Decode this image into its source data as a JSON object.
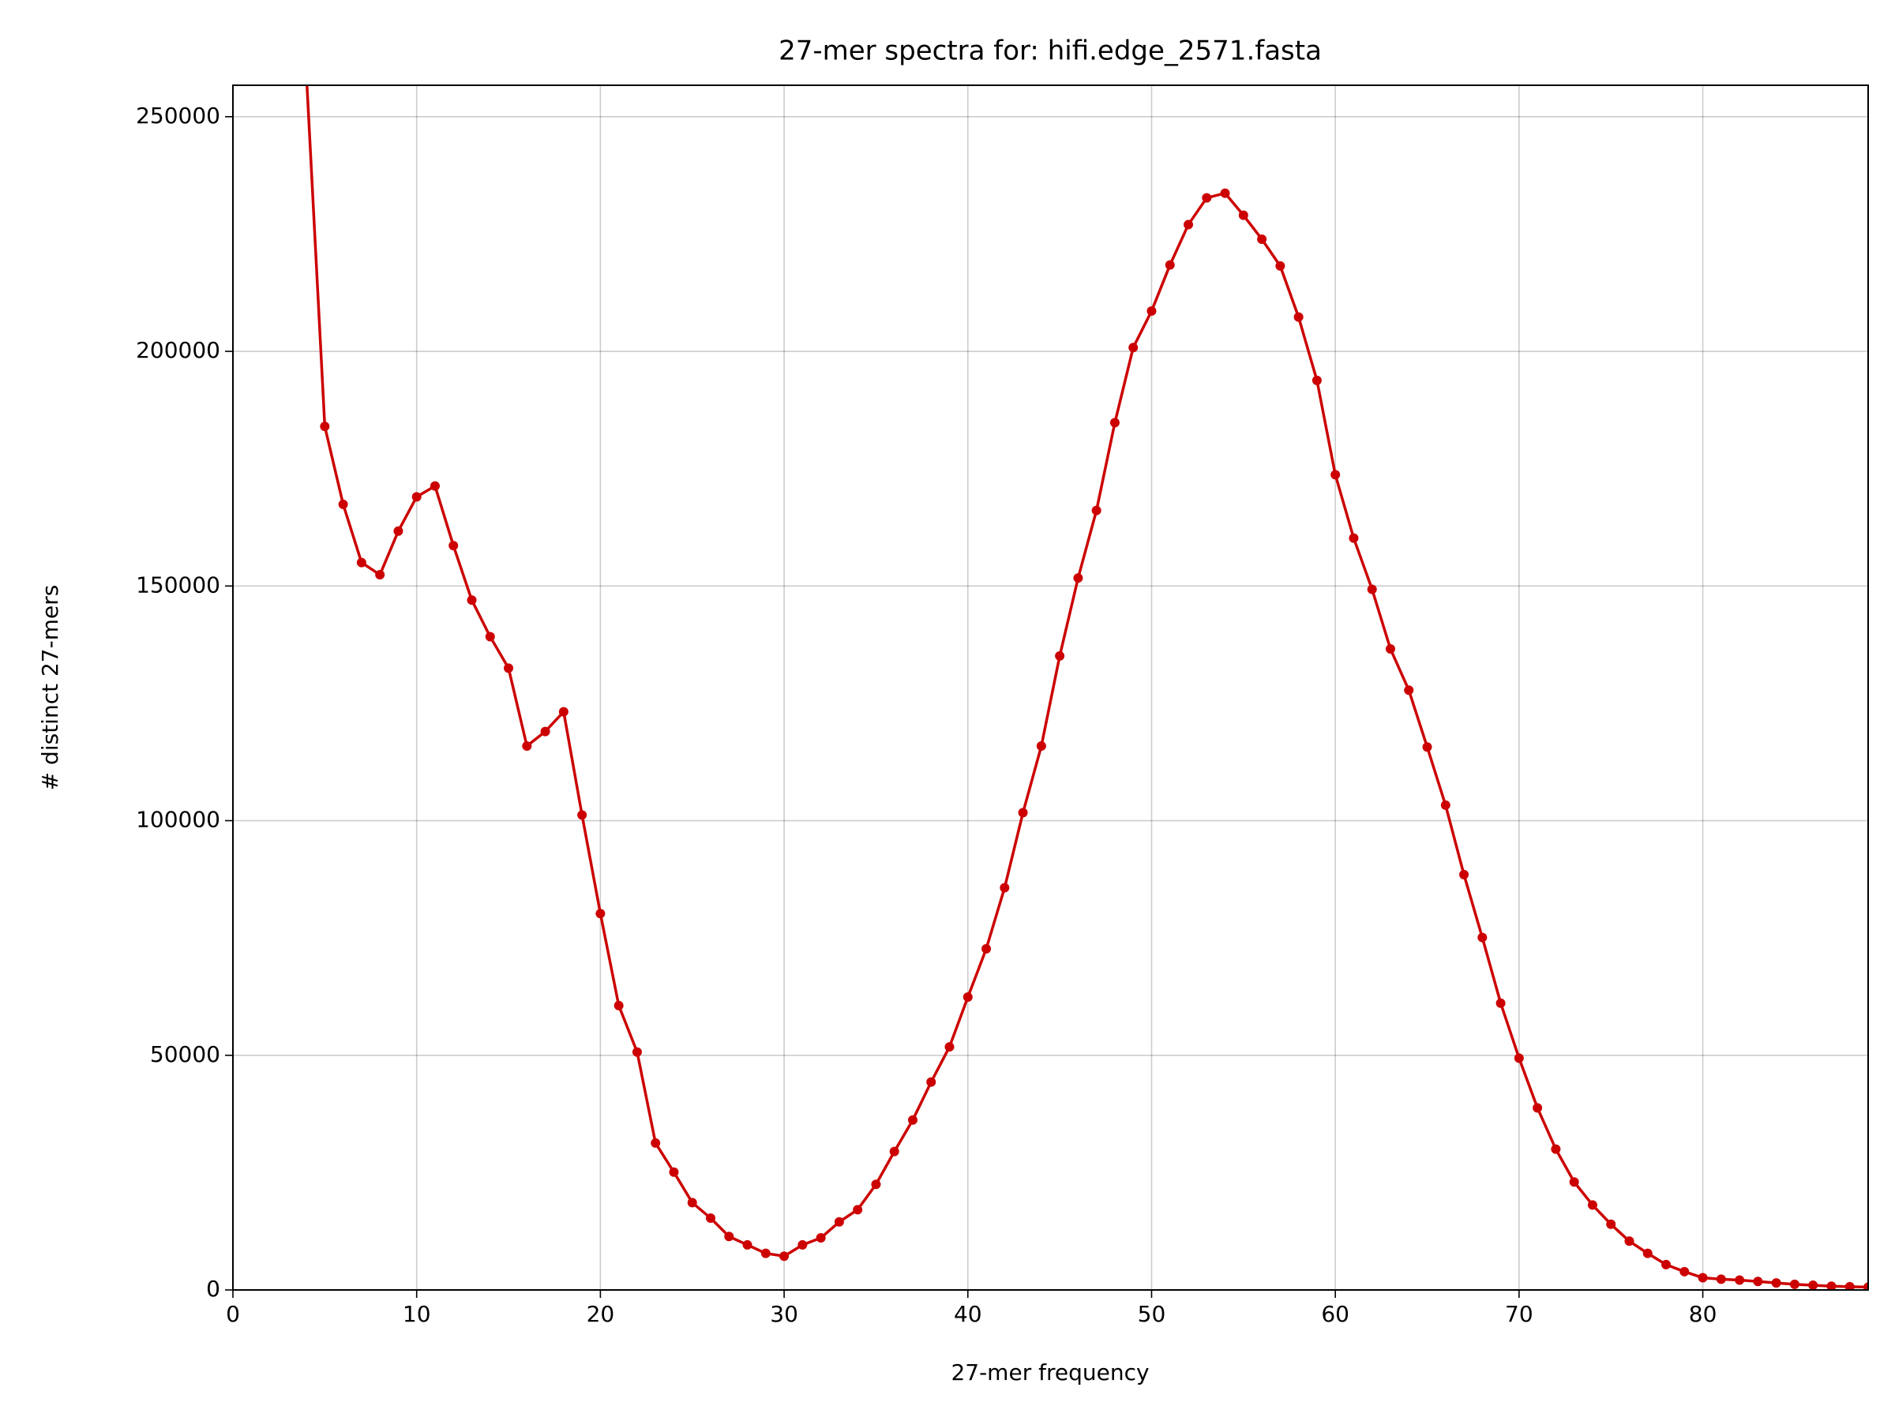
{
  "chart_data": {
    "type": "line",
    "title": "27-mer spectra for: hifi.edge_2571.fasta",
    "xlabel": "27-mer frequency",
    "ylabel": "# distinct 27-mers",
    "x": [
      4,
      5,
      6,
      7,
      8,
      9,
      10,
      11,
      12,
      13,
      14,
      15,
      16,
      17,
      18,
      19,
      20,
      21,
      22,
      23,
      24,
      25,
      26,
      27,
      28,
      29,
      30,
      31,
      32,
      33,
      34,
      35,
      36,
      37,
      38,
      39,
      40,
      41,
      42,
      43,
      44,
      45,
      46,
      47,
      48,
      49,
      50,
      51,
      52,
      53,
      54,
      55,
      56,
      57,
      58,
      59,
      60,
      61,
      62,
      63,
      64,
      65,
      66,
      67,
      68,
      69,
      70,
      71,
      72,
      73,
      74,
      75,
      76,
      77,
      78,
      79,
      80,
      81,
      82,
      83,
      84,
      85,
      86,
      87,
      88,
      89
    ],
    "values": [
      259000,
      184000,
      167400,
      155000,
      152400,
      161700,
      169000,
      171300,
      158600,
      147000,
      139200,
      132500,
      115900,
      119000,
      123200,
      101200,
      80200,
      60600,
      50700,
      31300,
      25100,
      18600,
      15300,
      11400,
      9600,
      7800,
      7200,
      9600,
      11100,
      14500,
      17100,
      22500,
      29500,
      36200,
      44300,
      51800,
      62400,
      72700,
      85700,
      101700,
      115900,
      135100,
      151700,
      166100,
      184800,
      200800,
      208600,
      218400,
      227000,
      232700,
      233700,
      229000,
      223900,
      218200,
      207300,
      193800,
      173700,
      160200,
      149300,
      136600,
      127800,
      115700,
      103300,
      88500,
      75100,
      61100,
      49400,
      38800,
      30000,
      23000,
      18100,
      14000,
      10400,
      7800,
      5400,
      3900,
      2600,
      2300,
      2100,
      1800,
      1500,
      1200,
      1000,
      800,
      700,
      600
    ],
    "color": "#cc0000",
    "marker": true,
    "xlim": [
      0,
      89
    ],
    "ylim": [
      0,
      256700
    ],
    "xticks": [
      0,
      10,
      20,
      30,
      40,
      50,
      60,
      70,
      80
    ],
    "yticks": [
      0,
      50000,
      100000,
      150000,
      200000,
      250000
    ],
    "grid": true
  }
}
